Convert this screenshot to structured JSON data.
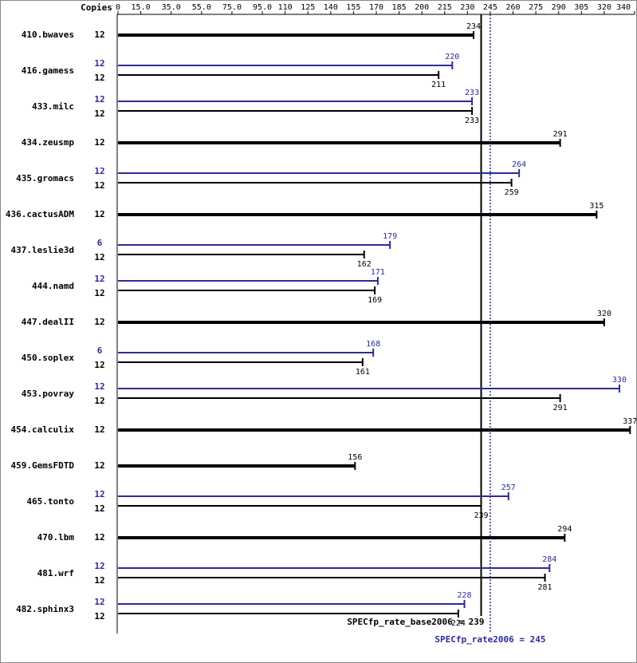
{
  "chart_data": {
    "type": "bar",
    "axis_label": "Copies",
    "categories": [
      "410.bwaves",
      "416.gamess",
      "433.milc",
      "434.zeusmp",
      "435.gromacs",
      "436.cactusADM",
      "437.leslie3d",
      "444.namd",
      "447.dealII",
      "450.soplex",
      "453.povray",
      "454.calculix",
      "459.GemsFDTD",
      "465.tonto",
      "470.lbm",
      "481.wrf",
      "482.sphinx3"
    ],
    "series": [
      {
        "color": "#2b2b9b",
        "copies": [
          null,
          12,
          12,
          null,
          12,
          null,
          6,
          12,
          null,
          6,
          12,
          null,
          null,
          12,
          null,
          12,
          12
        ],
        "values": [
          null,
          220,
          233,
          null,
          264,
          null,
          179,
          171,
          null,
          168,
          330,
          null,
          null,
          257,
          null,
          284,
          228
        ]
      },
      {
        "color": "#000000",
        "copies": [
          12,
          12,
          12,
          12,
          12,
          12,
          12,
          12,
          12,
          12,
          12,
          12,
          12,
          12,
          12,
          12,
          12
        ],
        "values": [
          234,
          211,
          233,
          291,
          259,
          315,
          162,
          169,
          320,
          161,
          291,
          337,
          156,
          239,
          294,
          281,
          224
        ]
      }
    ],
    "reference_lines": [
      {
        "label": "SPECfp_rate_base2006 = 239",
        "value": 239,
        "color": "#000000",
        "style": "solid"
      },
      {
        "label": "SPECfp_rate2006 = 245",
        "value": 245,
        "color": "#2b2b9b",
        "style": "dotted"
      }
    ],
    "xlim": [
      0,
      340
    ],
    "xticks": [
      0,
      {
        "value": 15,
        "label": "15.0"
      },
      {
        "value": 35,
        "label": "35.0"
      },
      {
        "value": 55,
        "label": "55.0"
      },
      {
        "value": 75,
        "label": "75.0"
      },
      {
        "value": 95,
        "label": "95.0"
      },
      110,
      125,
      140,
      155,
      170,
      185,
      200,
      215,
      230,
      245,
      260,
      275,
      290,
      305,
      320,
      340
    ]
  }
}
